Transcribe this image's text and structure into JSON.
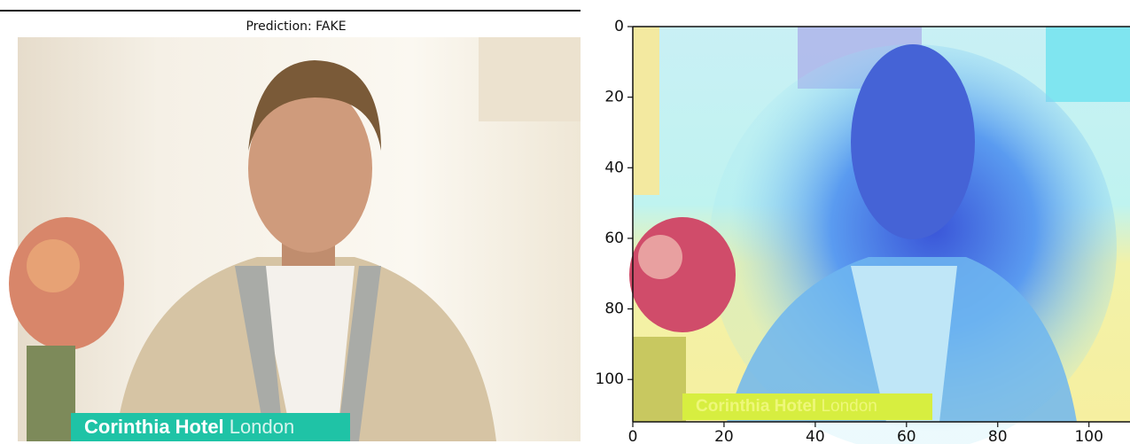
{
  "chart_data": [
    {
      "type": "image",
      "title": "Prediction: FAKE",
      "caption": [
        "Corinthia Hotel",
        "London"
      ]
    },
    {
      "type": "image",
      "xlim": [
        0,
        109
      ],
      "ylim": [
        112,
        0
      ],
      "xticks": [
        0,
        20,
        40,
        60,
        80,
        100
      ],
      "yticks": [
        0,
        20,
        40,
        60,
        80,
        100
      ],
      "caption": [
        "Corinthia Hotel",
        "London"
      ]
    }
  ]
}
